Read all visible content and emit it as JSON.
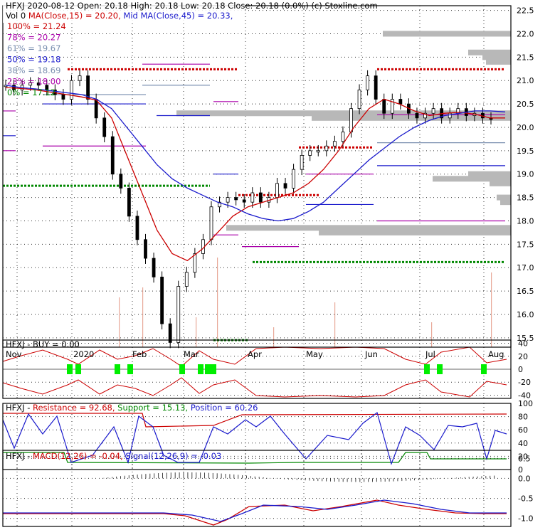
{
  "header": {
    "line1": [
      {
        "text": "HFXJ  2020-08-12 Open: 20.18  High: 20.18  Low: 20.18  Close: 20.18 (0.0%)  (c) Stoxline.com",
        "color": "#000000"
      }
    ],
    "line2": [
      {
        "text": "Vol 0  ",
        "color": "#000000"
      },
      {
        "text": "MA(Close,15) = 20.20, ",
        "color": "#cc0000"
      },
      {
        "text": "Mid MA(Close,45) = 20.33,",
        "color": "#1a1acc"
      }
    ]
  },
  "fib_levels": [
    {
      "label": "100% = 21.24",
      "color": "#cc0000"
    },
    {
      "label": "78% = 20.27",
      "color": "#aa00aa"
    },
    {
      "label": "61% = 19.67",
      "color": "#7a8fb0"
    },
    {
      "label": "50% = 19.18",
      "color": "#1a1acc"
    },
    {
      "label": "38% = 18.69",
      "color": "#7a8fb0"
    },
    {
      "label": "23% = 18.00",
      "color": "#aa00aa"
    },
    {
      "label": "0% = 17.12",
      "color": "#008800"
    }
  ],
  "months": [
    "Nov",
    "2020",
    "Feb",
    "Mar",
    "Apr",
    "May",
    "Jun",
    "Jul",
    "Aug"
  ],
  "chart_data": [
    {
      "type": "candlestick",
      "ylim": [
        15.3,
        22.6
      ],
      "y_ticks": [
        "22.5",
        "22.0",
        "21.5",
        "21.0",
        "20.5",
        "20.0",
        "19.5",
        "19.0",
        "18.5",
        "18.0",
        "17.5",
        "17.0",
        "16.5",
        "16.0",
        "15.5"
      ],
      "series": [
        {
          "name": "MA(Close,15)",
          "color": "#cc0000",
          "values": [
            20.85,
            20.83,
            20.8,
            20.75,
            20.7,
            20.65,
            20.58,
            20.2,
            19.4,
            18.6,
            17.8,
            17.3,
            17.15,
            17.4,
            17.75,
            18.1,
            18.3,
            18.4,
            18.5,
            18.6,
            18.8,
            19.1,
            19.5,
            20.0,
            20.4,
            20.6,
            20.5,
            20.35,
            20.25,
            20.3,
            20.32,
            20.28,
            20.2,
            20.2
          ]
        },
        {
          "name": "Mid MA(Close,45)",
          "color": "#1a1acc",
          "values": [
            20.9,
            20.85,
            20.82,
            20.78,
            20.74,
            20.7,
            20.6,
            20.4,
            20.0,
            19.6,
            19.2,
            18.9,
            18.7,
            18.55,
            18.4,
            18.3,
            18.15,
            18.05,
            18.0,
            18.05,
            18.2,
            18.4,
            18.7,
            19.0,
            19.3,
            19.55,
            19.8,
            20.0,
            20.15,
            20.25,
            20.3,
            20.35,
            20.35,
            20.33
          ]
        }
      ],
      "candles": [
        20.9,
        20.8,
        20.9,
        20.95,
        20.9,
        20.8,
        20.7,
        20.6,
        21.0,
        21.1,
        20.6,
        20.2,
        19.8,
        19.0,
        18.7,
        18.1,
        17.6,
        17.2,
        16.8,
        15.8,
        15.4,
        16.6,
        16.9,
        17.3,
        17.6,
        18.3,
        18.4,
        18.5,
        18.45,
        18.4,
        18.6,
        18.4,
        18.5,
        18.8,
        18.7,
        19.1,
        19.4,
        19.5,
        19.5,
        19.6,
        19.7,
        19.9,
        20.4,
        20.8,
        21.1,
        20.6,
        20.3,
        20.6,
        20.5,
        20.3,
        20.2,
        20.3,
        20.4,
        20.2,
        20.3,
        20.4,
        20.25,
        20.3,
        20.2,
        20.18
      ]
    },
    {
      "type": "line",
      "title": "HFXJ - BUY = 0.00",
      "ylim": [
        -45,
        45
      ],
      "y_ticks": [
        "40",
        "20",
        "0",
        "-20",
        "-40"
      ]
    },
    {
      "type": "line",
      "title_parts": [
        {
          "text": "HFXJ - ",
          "color": "#000000"
        },
        {
          "text": "Resistance = 92.68, ",
          "color": "#cc0000"
        },
        {
          "text": "Support = 15.13, ",
          "color": "#008800"
        },
        {
          "text": "Position = 60.26",
          "color": "#1a1acc"
        }
      ],
      "ylim": [
        0,
        100
      ],
      "y_ticks": [
        "100",
        "80",
        "60",
        "40",
        "20",
        "0"
      ],
      "series": [
        {
          "name": "Resistance",
          "color": "#cc0000",
          "values": [
            92.68
          ]
        },
        {
          "name": "Support",
          "color": "#008800",
          "values": [
            15.13
          ]
        },
        {
          "name": "Position",
          "color": "#1a1acc",
          "values": [
            60.26
          ]
        }
      ]
    },
    {
      "type": "line",
      "title_parts": [
        {
          "text": "HFXJ - ",
          "color": "#000000"
        },
        {
          "text": "MACD(12,26) = -0.04, ",
          "color": "#cc0000"
        },
        {
          "text": "Signal(12,26,9) = -0.03",
          "color": "#1a1acc"
        }
      ],
      "ylim": [
        -1.2,
        0.7
      ],
      "y_ticks": [
        "0.5",
        "0.0",
        "-0.5",
        "-1.0"
      ],
      "series": [
        {
          "name": "MACD(12,26)",
          "color": "#cc0000",
          "values": [
            -0.04
          ]
        },
        {
          "name": "Signal(12,26,9)",
          "color": "#1a1acc",
          "values": [
            -0.03
          ]
        }
      ]
    }
  ]
}
